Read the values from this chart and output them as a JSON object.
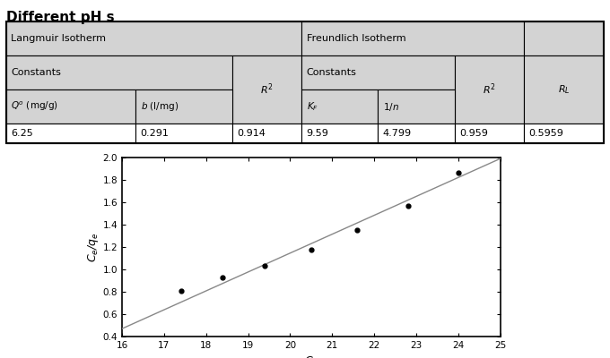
{
  "title": "Different pH s",
  "table": {
    "data_row": [
      "6.25",
      "0.291",
      "0.914",
      "9.59",
      "4.799",
      "0.959",
      "0.5959"
    ]
  },
  "scatter_x": [
    17.4,
    18.4,
    19.4,
    20.5,
    21.6,
    22.8,
    24.0
  ],
  "scatter_y": [
    0.81,
    0.93,
    1.03,
    1.18,
    1.35,
    1.57,
    1.86
  ],
  "line_x": [
    16.0,
    25.0
  ],
  "line_y": [
    0.47,
    1.99
  ],
  "xlabel": "$C_e$",
  "ylabel": "$C_e$/$q_e$",
  "xlim": [
    16,
    25
  ],
  "ylim": [
    0.4,
    2.0
  ],
  "xticks": [
    16,
    17,
    18,
    19,
    20,
    21,
    22,
    23,
    24,
    25
  ],
  "yticks": [
    0.4,
    0.6,
    0.8,
    1.0,
    1.2,
    1.4,
    1.6,
    1.8,
    2.0
  ],
  "bg_color": "#ffffff",
  "line_color": "#888888",
  "marker_color": "#000000",
  "table_header_bg": "#d3d3d3",
  "table_data_bg": "#ffffff",
  "border_color": "#000000",
  "col_widths": [
    0.195,
    0.145,
    0.105,
    0.115,
    0.115,
    0.105,
    0.12
  ]
}
